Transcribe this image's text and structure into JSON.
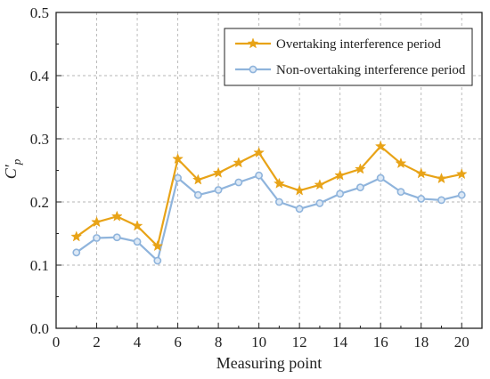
{
  "chart_data": {
    "type": "line",
    "xlabel": "Measuring point",
    "ylabel": "C′p",
    "ylabel_main": "C",
    "ylabel_prime": "′",
    "ylabel_sub": "p",
    "xlim": [
      0,
      21
    ],
    "ylim": [
      0.0,
      0.5
    ],
    "x_ticks": [
      0,
      2,
      4,
      6,
      8,
      10,
      12,
      14,
      16,
      18,
      20
    ],
    "y_ticks": [
      0.0,
      0.1,
      0.2,
      0.3,
      0.4,
      0.5
    ],
    "y_tick_labels": [
      "0.0",
      "0.1",
      "0.2",
      "0.3",
      "0.4",
      "0.5"
    ],
    "grid": true,
    "legend_position": "top-right",
    "x": [
      1,
      2,
      3,
      4,
      5,
      6,
      7,
      8,
      9,
      10,
      11,
      12,
      13,
      14,
      15,
      16,
      17,
      18,
      19,
      20
    ],
    "series": [
      {
        "name": "Overtaking interference period",
        "color": "#E8A317",
        "marker": "star",
        "values": [
          0.145,
          0.168,
          0.177,
          0.162,
          0.13,
          0.268,
          0.235,
          0.246,
          0.262,
          0.278,
          0.229,
          0.218,
          0.227,
          0.242,
          0.252,
          0.288,
          0.261,
          0.245,
          0.237,
          0.244
        ]
      },
      {
        "name": "Non-overtaking interference period",
        "color": "#8FB4DC",
        "marker": "circle",
        "values": [
          0.12,
          0.143,
          0.144,
          0.137,
          0.107,
          0.238,
          0.211,
          0.219,
          0.231,
          0.242,
          0.2,
          0.189,
          0.198,
          0.213,
          0.223,
          0.238,
          0.216,
          0.205,
          0.203,
          0.211
        ]
      }
    ]
  }
}
